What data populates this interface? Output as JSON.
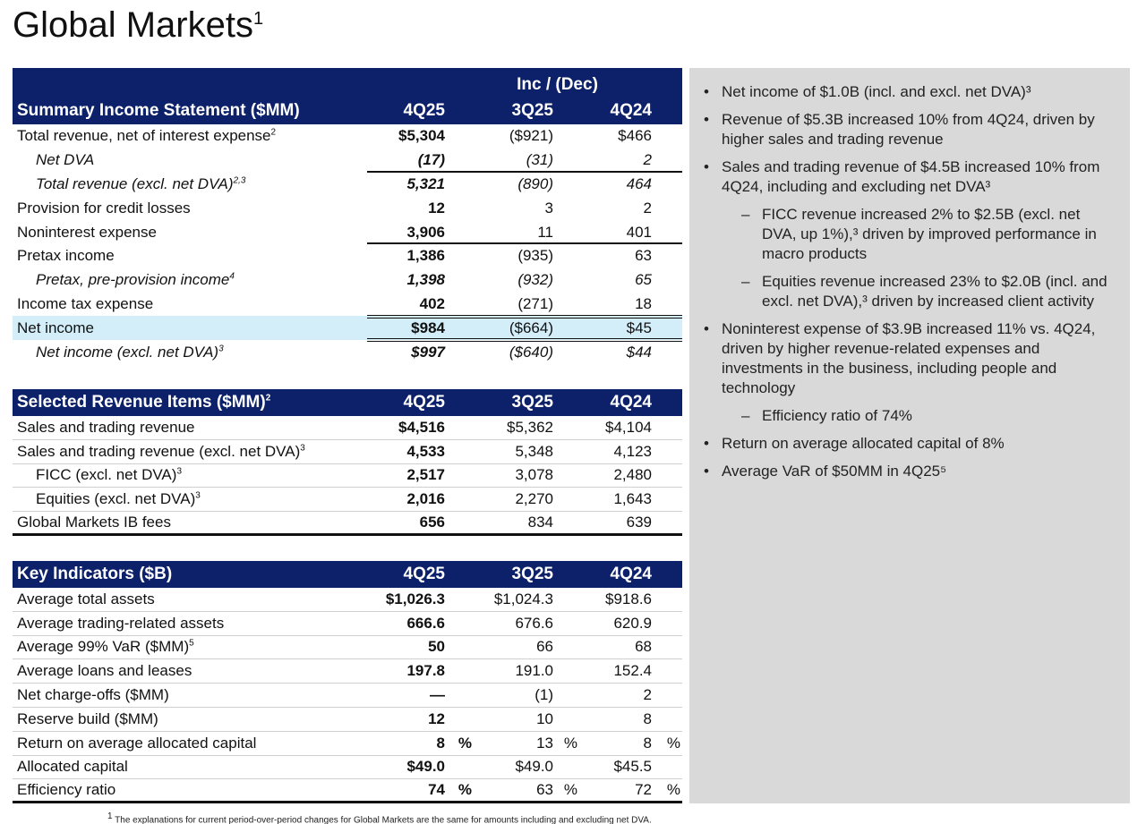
{
  "title": "Global Markets",
  "title_sup": "1",
  "income": {
    "super_header": "Inc / (Dec)",
    "header": [
      "Summary Income Statement ($MM)",
      "4Q25",
      "3Q25",
      "4Q24"
    ],
    "rows": [
      {
        "label": "Total revenue, net of interest expense",
        "sup": "2",
        "v": [
          "$5,304",
          "($921)",
          "$466"
        ]
      },
      {
        "label": "Net DVA",
        "sup": "",
        "v": [
          "(17)",
          "(31)",
          "2"
        ]
      },
      {
        "label": "Total revenue (excl. net DVA)",
        "sup": "2,3",
        "v": [
          "5,321",
          "(890)",
          "464"
        ]
      },
      {
        "label": "Provision for credit losses",
        "sup": "",
        "v": [
          "12",
          "3",
          "2"
        ]
      },
      {
        "label": "Noninterest expense",
        "sup": "",
        "v": [
          "3,906",
          "11",
          "401"
        ]
      },
      {
        "label": "Pretax income",
        "sup": "",
        "v": [
          "1,386",
          "(935)",
          "63"
        ]
      },
      {
        "label": "Pretax, pre-provision income",
        "sup": "4",
        "v": [
          "1,398",
          "(932)",
          "65"
        ]
      },
      {
        "label": "Income tax expense",
        "sup": "",
        "v": [
          "402",
          "(271)",
          "18"
        ]
      },
      {
        "label": "Net income",
        "sup": "",
        "v": [
          "$984",
          "($664)",
          "$45"
        ]
      },
      {
        "label": "Net income (excl. net DVA)",
        "sup": "3",
        "v": [
          "$997",
          "($640)",
          "$44"
        ]
      }
    ]
  },
  "revenue": {
    "header": [
      "Selected Revenue Items ($MM)",
      "4Q25",
      "3Q25",
      "4Q24"
    ],
    "header_sup": "2",
    "rows": [
      {
        "label": "Sales and trading revenue",
        "sup": "",
        "v": [
          "$4,516",
          "$5,362",
          "$4,104"
        ]
      },
      {
        "label": "Sales and trading revenue (excl. net DVA)",
        "sup": "3",
        "v": [
          "4,533",
          "5,348",
          "4,123"
        ]
      },
      {
        "label": "FICC (excl. net DVA)",
        "sup": "3",
        "v": [
          "2,517",
          "3,078",
          "2,480"
        ]
      },
      {
        "label": "Equities (excl. net DVA)",
        "sup": "3",
        "v": [
          "2,016",
          "2,270",
          "1,643"
        ]
      },
      {
        "label": "Global Markets IB fees",
        "sup": "",
        "v": [
          "656",
          "834",
          "639"
        ]
      }
    ]
  },
  "indicators": {
    "header": [
      "Key Indicators ($B)",
      "4Q25",
      "3Q25",
      "4Q24"
    ],
    "pct": "%",
    "rows": [
      {
        "label": "Average total assets",
        "sup": "",
        "v": [
          "$1,026.3",
          "$1,024.3",
          "$918.6"
        ]
      },
      {
        "label": "Average trading-related assets",
        "sup": "",
        "v": [
          "666.6",
          "676.6",
          "620.9"
        ]
      },
      {
        "label": "Average 99% VaR ($MM)",
        "sup": "5",
        "v": [
          "50",
          "66",
          "68"
        ]
      },
      {
        "label": "Average loans and leases",
        "sup": "",
        "v": [
          "197.8",
          "191.0",
          "152.4"
        ]
      },
      {
        "label": "Net charge-offs ($MM)",
        "sup": "",
        "v": [
          "—",
          "(1)",
          "2"
        ]
      },
      {
        "label": "Reserve build ($MM)",
        "sup": "",
        "v": [
          "12",
          "10",
          "8"
        ]
      },
      {
        "label": "Return on average allocated capital",
        "sup": "",
        "v": [
          "8",
          "13",
          "8"
        ]
      },
      {
        "label": "Allocated capital",
        "sup": "",
        "v": [
          "$49.0",
          "$49.0",
          "$45.5"
        ]
      },
      {
        "label": "Efficiency ratio",
        "sup": "",
        "v": [
          "74",
          "63",
          "72"
        ]
      }
    ]
  },
  "bullets": [
    {
      "level": 1,
      "text": "Net income of $1.0B (incl. and excl. net DVA)³"
    },
    {
      "level": 1,
      "text": "Revenue of $5.3B increased 10% from 4Q24, driven by higher sales and trading revenue"
    },
    {
      "level": 1,
      "text": "Sales and trading revenue of $4.5B increased 10% from 4Q24, including and excluding net DVA³"
    },
    {
      "level": 2,
      "text": "FICC revenue increased 2% to $2.5B (excl. net DVA, up 1%),³ driven by improved performance in macro products"
    },
    {
      "level": 2,
      "text": "Equities revenue increased 23% to $2.0B (incl. and excl. net DVA),³ driven by increased client activity"
    },
    {
      "level": 1,
      "text": "Noninterest expense of $3.9B increased 11% vs. 4Q24, driven by higher revenue-related expenses and investments in the business, including people and technology"
    },
    {
      "level": 2,
      "text": "Efficiency ratio of 74%"
    },
    {
      "level": 1,
      "text": "Return on average allocated capital of 8%"
    },
    {
      "level": 1,
      "text": "Average VaR of $50MM in 4Q25⁵"
    }
  ],
  "footnote_sup": "1",
  "footnote": "The explanations for current period-over-period changes for Global Markets are the same for amounts including and excluding net DVA."
}
